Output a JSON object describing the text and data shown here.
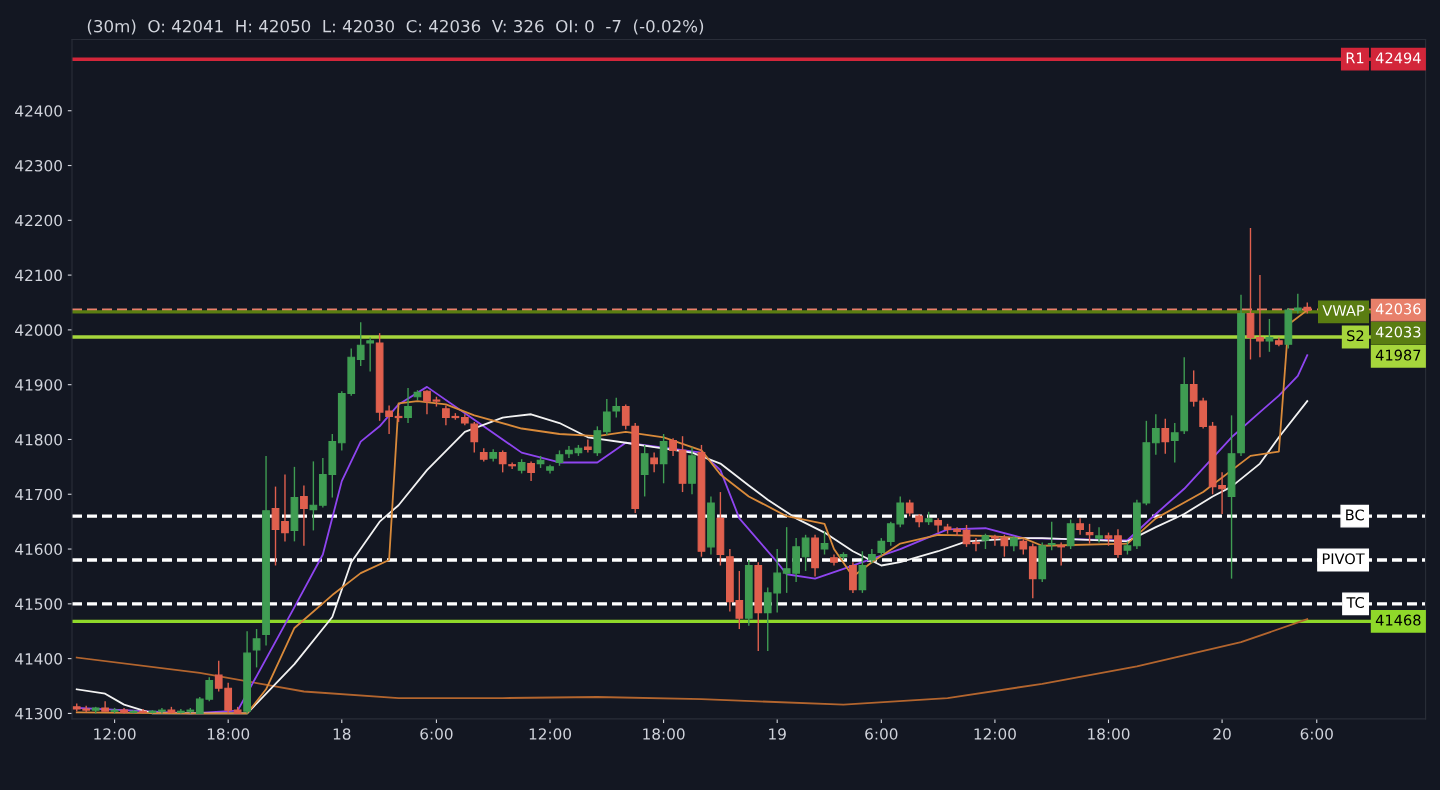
{
  "chart_data": {
    "type": "candlestick",
    "categories": [
      null,
      null,
      null,
      null,
      "12:00",
      null,
      null,
      null,
      null,
      null,
      null,
      null,
      null,
      null,
      null,
      null,
      "18:00",
      null,
      null,
      null,
      null,
      null,
      null,
      null,
      null,
      null,
      null,
      null,
      "18",
      null,
      null,
      null,
      null,
      null,
      null,
      null,
      null,
      null,
      "6:00",
      null,
      null,
      null,
      null,
      null,
      null,
      null,
      null,
      null,
      null,
      null,
      "12:00",
      null,
      null,
      null,
      null,
      null,
      null,
      null,
      null,
      null,
      null,
      null,
      "18:00",
      null,
      null,
      null,
      null,
      null,
      null,
      null,
      null,
      null,
      null,
      null,
      "19",
      null,
      null,
      null,
      null,
      null,
      null,
      null,
      null,
      null,
      null,
      "6:00",
      null,
      null,
      null,
      null,
      null,
      null,
      null,
      null,
      null,
      null,
      null,
      "12:00",
      null,
      null,
      null,
      null,
      null,
      null,
      null,
      null,
      null,
      null,
      null,
      "18:00",
      null,
      null,
      null,
      null,
      null,
      null,
      null,
      null,
      null,
      null,
      null,
      "20",
      null,
      null,
      null,
      null,
      null,
      null,
      null,
      null,
      null,
      "6:00"
    ],
    "ohlc": [
      [
        41312,
        41318,
        41304,
        41308
      ],
      [
        41308,
        41314,
        41302,
        41306
      ],
      [
        41306,
        41312,
        41300,
        41310
      ],
      [
        41310,
        41322,
        41304,
        41304
      ],
      [
        41304,
        41310,
        41300,
        41306
      ],
      [
        41306,
        41310,
        41300,
        41302
      ],
      [
        41302,
        41306,
        41300,
        41304
      ],
      [
        41304,
        41308,
        41300,
        41302
      ],
      [
        41302,
        41306,
        41300,
        41304
      ],
      [
        41304,
        41310,
        41300,
        41306
      ],
      [
        41306,
        41312,
        41300,
        41302
      ],
      [
        41302,
        41308,
        41300,
        41304
      ],
      [
        41304,
        41310,
        41300,
        41306
      ],
      [
        41300,
        41330,
        41300,
        41326
      ],
      [
        41326,
        41366,
        41322,
        41360
      ],
      [
        41370,
        41396,
        41340,
        41346
      ],
      [
        41346,
        41356,
        41300,
        41306
      ],
      [
        41306,
        41312,
        41300,
        41300
      ],
      [
        41304,
        41450,
        41300,
        41410
      ],
      [
        41416,
        41454,
        41384,
        41436
      ],
      [
        41444,
        41770,
        41424,
        41670
      ],
      [
        41674,
        41714,
        41570,
        41636
      ],
      [
        41650,
        41736,
        41614,
        41630
      ],
      [
        41634,
        41750,
        41614,
        41694
      ],
      [
        41696,
        41716,
        41606,
        41674
      ],
      [
        41672,
        41760,
        41634,
        41680
      ],
      [
        41680,
        41766,
        41676,
        41736
      ],
      [
        41736,
        41810,
        41694,
        41796
      ],
      [
        41794,
        41888,
        41780,
        41884
      ],
      [
        41884,
        41966,
        41880,
        41950
      ],
      [
        41946,
        42014,
        41934,
        41972
      ],
      [
        41976,
        41986,
        41924,
        41980
      ],
      [
        41976,
        41994,
        41834,
        41850
      ],
      [
        41852,
        41862,
        41810,
        41842
      ],
      [
        41842,
        41848,
        41832,
        41840
      ],
      [
        41840,
        41894,
        41830,
        41860
      ],
      [
        41878,
        41890,
        41872,
        41886
      ],
      [
        41888,
        41890,
        41846,
        41870
      ],
      [
        41872,
        41878,
        41860,
        41870
      ],
      [
        41856,
        41862,
        41826,
        41840
      ],
      [
        41842,
        41848,
        41836,
        41840
      ],
      [
        41840,
        41846,
        41826,
        41830
      ],
      [
        41828,
        41832,
        41776,
        41796
      ],
      [
        41776,
        41784,
        41760,
        41764
      ],
      [
        41766,
        41782,
        41760,
        41776
      ],
      [
        41776,
        41780,
        41740,
        41756
      ],
      [
        41754,
        41758,
        41746,
        41752
      ],
      [
        41744,
        41764,
        41738,
        41758
      ],
      [
        41756,
        41760,
        41724,
        41740
      ],
      [
        41756,
        41770,
        41748,
        41762
      ],
      [
        41744,
        41754,
        41738,
        41750
      ],
      [
        41758,
        41780,
        41752,
        41772
      ],
      [
        41774,
        41788,
        41766,
        41780
      ],
      [
        41776,
        41790,
        41770,
        41784
      ],
      [
        41786,
        41800,
        41776,
        41782
      ],
      [
        41776,
        41824,
        41770,
        41816
      ],
      [
        41814,
        41874,
        41808,
        41850
      ],
      [
        41852,
        41876,
        41840,
        41860
      ],
      [
        41860,
        41864,
        41818,
        41826
      ],
      [
        41824,
        41830,
        41666,
        41674
      ],
      [
        41736,
        41790,
        41696,
        41774
      ],
      [
        41766,
        41776,
        41740,
        41756
      ],
      [
        41756,
        41810,
        41720,
        41796
      ],
      [
        41798,
        41802,
        41770,
        41780
      ],
      [
        41780,
        41806,
        41704,
        41720
      ],
      [
        41720,
        41786,
        41700,
        41770
      ],
      [
        41776,
        41790,
        41586,
        41596
      ],
      [
        41604,
        41696,
        41590,
        41684
      ],
      [
        41656,
        41704,
        41570,
        41590
      ],
      [
        41586,
        41600,
        41486,
        41504
      ],
      [
        41506,
        41560,
        41454,
        41474
      ],
      [
        41474,
        41580,
        41460,
        41570
      ],
      [
        41570,
        41576,
        41414,
        41484
      ],
      [
        41484,
        41530,
        41414,
        41520
      ],
      [
        41520,
        41600,
        41484,
        41556
      ],
      [
        41556,
        41640,
        41520,
        41564
      ],
      [
        41556,
        41620,
        41540,
        41604
      ],
      [
        41586,
        41626,
        41560,
        41620
      ],
      [
        41620,
        41626,
        41550,
        41566
      ],
      [
        41600,
        41632,
        41590,
        41610
      ],
      [
        41584,
        41590,
        41570,
        41576
      ],
      [
        41586,
        41594,
        41580,
        41590
      ],
      [
        41570,
        41576,
        41520,
        41526
      ],
      [
        41526,
        41596,
        41520,
        41570
      ],
      [
        41580,
        41600,
        41574,
        41590
      ],
      [
        41594,
        41620,
        41588,
        41614
      ],
      [
        41614,
        41650,
        41606,
        41646
      ],
      [
        41646,
        41696,
        41640,
        41684
      ],
      [
        41684,
        41690,
        41660,
        41666
      ],
      [
        41660,
        41664,
        41640,
        41650
      ],
      [
        41650,
        41668,
        41644,
        41655
      ],
      [
        41652,
        41656,
        41630,
        41644
      ],
      [
        41640,
        41646,
        41628,
        41636
      ],
      [
        41636,
        41640,
        41624,
        41632
      ],
      [
        41634,
        41644,
        41604,
        41610
      ],
      [
        41612,
        41620,
        41596,
        41610
      ],
      [
        41616,
        41628,
        41600,
        41624
      ],
      [
        41622,
        41626,
        41606,
        41620
      ],
      [
        41620,
        41626,
        41586,
        41606
      ],
      [
        41606,
        41624,
        41596,
        41620
      ],
      [
        41614,
        41618,
        41590,
        41600
      ],
      [
        41604,
        41610,
        41510,
        41546
      ],
      [
        41546,
        41612,
        41540,
        41606
      ],
      [
        41608,
        41650,
        41598,
        41610
      ],
      [
        41606,
        41612,
        41570,
        41604
      ],
      [
        41606,
        41654,
        41600,
        41646
      ],
      [
        41646,
        41656,
        41626,
        41636
      ],
      [
        41630,
        41646,
        41610,
        41626
      ],
      [
        41620,
        41640,
        41612,
        41624
      ],
      [
        41624,
        41630,
        41606,
        41620
      ],
      [
        41624,
        41636,
        41584,
        41590
      ],
      [
        41598,
        41614,
        41590,
        41606
      ],
      [
        41606,
        41690,
        41600,
        41684
      ],
      [
        41684,
        41834,
        41680,
        41794
      ],
      [
        41794,
        41846,
        41772,
        41820
      ],
      [
        41820,
        41838,
        41774,
        41796
      ],
      [
        41798,
        41830,
        41758,
        41812
      ],
      [
        41816,
        41950,
        41810,
        41900
      ],
      [
        41900,
        41926,
        41860,
        41870
      ],
      [
        41870,
        41876,
        41820,
        41824
      ],
      [
        41824,
        41832,
        41700,
        41714
      ],
      [
        41716,
        41740,
        41664,
        41710
      ],
      [
        41696,
        41844,
        41546,
        41774
      ],
      [
        41776,
        42064,
        41770,
        42030
      ],
      [
        42030,
        42186,
        41946,
        41986
      ],
      [
        41986,
        42100,
        41950,
        41980
      ],
      [
        41980,
        42020,
        41960,
        41986
      ],
      [
        41980,
        41986,
        41970,
        41974
      ],
      [
        41974,
        42040,
        41966,
        42036
      ],
      [
        42036,
        42066,
        42030,
        42040
      ],
      [
        42041,
        42050,
        42030,
        42036
      ],
      null
    ],
    "colors": [
      "#e0604e",
      "#e0604e",
      "#3f9c52",
      "#e0604e",
      "#3f9c52",
      "#e0604e",
      "#3f9c52",
      "#e0604e",
      "#3f9c52",
      "#3f9c52",
      "#e0604e",
      "#3f9c52",
      "#3f9c52",
      "#3f9c52",
      "#3f9c52",
      "#e0604e",
      "#e0604e",
      "#e0604e",
      "#3f9c52",
      "#3f9c52",
      "#3f9c52",
      "#e0604e",
      "#e0604e",
      "#3f9c52",
      "#e0604e",
      "#3f9c52",
      "#3f9c52",
      "#3f9c52",
      "#3f9c52",
      "#3f9c52",
      "#3f9c52",
      "#3f9c52",
      "#e0604e",
      "#e0604e",
      "#e0604e",
      "#3f9c52",
      "#3f9c52",
      "#e0604e",
      "#e0604e",
      "#e0604e",
      "#e0604e",
      "#e0604e",
      "#e0604e",
      "#e0604e",
      "#3f9c52",
      "#e0604e",
      "#e0604e",
      "#3f9c52",
      "#e0604e",
      "#3f9c52",
      "#3f9c52",
      "#3f9c52",
      "#3f9c52",
      "#3f9c52",
      "#e0604e",
      "#3f9c52",
      "#3f9c52",
      "#3f9c52",
      "#e0604e",
      "#e0604e",
      "#3f9c52",
      "#e0604e",
      "#3f9c52",
      "#e0604e",
      "#e0604e",
      "#3f9c52",
      "#e0604e",
      "#3f9c52",
      "#e0604e",
      "#e0604e",
      "#e0604e",
      "#3f9c52",
      "#e0604e",
      "#3f9c52",
      "#3f9c52",
      "#3f9c52",
      "#3f9c52",
      "#3f9c52",
      "#e0604e",
      "#3f9c52",
      "#e0604e",
      "#3f9c52",
      "#e0604e",
      "#3f9c52",
      "#3f9c52",
      "#3f9c52",
      "#3f9c52",
      "#3f9c52",
      "#e0604e",
      "#e0604e",
      "#3f9c52",
      "#e0604e",
      "#e0604e",
      "#e0604e",
      "#e0604e",
      "#e0604e",
      "#3f9c52",
      "#e0604e",
      "#e0604e",
      "#3f9c52",
      "#e0604e",
      "#e0604e",
      "#3f9c52",
      "#3f9c52",
      "#e0604e",
      "#3f9c52",
      "#e0604e",
      "#e0604e",
      "#3f9c52",
      "#e0604e",
      "#e0604e",
      "#3f9c52",
      "#3f9c52",
      "#3f9c52",
      "#3f9c52",
      "#e0604e",
      "#3f9c52",
      "#3f9c52",
      "#e0604e",
      "#e0604e",
      "#e0604e",
      "#e0604e",
      "#3f9c52",
      "#3f9c52",
      "#e0604e",
      "#e0604e",
      "#3f9c52",
      "#e0604e",
      "#3f9c52",
      "#3f9c52",
      "#e0604e",
      null
    ],
    "ylim": [
      41290,
      42530
    ],
    "yticks": [
      41300,
      41400,
      41500,
      41600,
      41700,
      41800,
      41900,
      42000,
      42100,
      42200,
      42300,
      42400
    ],
    "series": [
      {
        "type": "line",
        "color": "#b3652e",
        "values": [
          41402,
          null,
          null,
          null,
          null,
          null,
          null,
          null,
          null,
          null,
          null,
          null,
          null,
          41374,
          null,
          null,
          null,
          null,
          null,
          null,
          null,
          null,
          null,
          null,
          41340,
          null,
          null,
          null,
          null,
          null,
          null,
          null,
          null,
          null,
          41328,
          null,
          null,
          null,
          null,
          null,
          null,
          null,
          null,
          null,
          null,
          41328,
          null,
          null,
          null,
          null,
          null,
          null,
          null,
          null,
          null,
          41330,
          null,
          null,
          null,
          null,
          null,
          null,
          null,
          null,
          null,
          null,
          41326,
          null,
          null,
          null,
          null,
          null,
          null,
          null,
          null,
          null,
          null,
          null,
          null,
          null,
          null,
          41316,
          null,
          null,
          null,
          null,
          null,
          null,
          null,
          null,
          null,
          null,
          41328,
          null,
          null,
          null,
          null,
          null,
          null,
          null,
          null,
          null,
          41354,
          null,
          null,
          null,
          null,
          null,
          null,
          null,
          null,
          null,
          41386,
          null,
          null,
          null,
          null,
          null,
          null,
          null,
          null,
          null,
          null,
          41430,
          null,
          null,
          null,
          null,
          null,
          null,
          41472,
          null
        ]
      },
      {
        "type": "line",
        "color": "#8f45f0",
        "values": [
          41310,
          null,
          null,
          null,
          null,
          null,
          null,
          null,
          null,
          null,
          null,
          null,
          41300,
          null,
          null,
          null,
          null,
          41305,
          null,
          null,
          null,
          null,
          null,
          41494,
          null,
          null,
          41590,
          null,
          41724,
          null,
          41796,
          null,
          41824,
          null,
          41864,
          null,
          null,
          41896,
          null,
          null,
          null,
          null,
          41836,
          null,
          null,
          null,
          null,
          41776,
          null,
          null,
          null,
          41758,
          null,
          null,
          null,
          41758,
          null,
          null,
          41794,
          null,
          null,
          null,
          null,
          null,
          null,
          null,
          41776,
          null,
          41744,
          null,
          41656,
          null,
          null,
          null,
          41576,
          41554,
          null,
          null,
          41546,
          null,
          null,
          41564,
          null,
          41576,
          null,
          null,
          null,
          41600,
          null,
          null,
          null,
          null,
          41636,
          null,
          null,
          null,
          41638,
          null,
          null,
          null,
          41620,
          null,
          null,
          null,
          null,
          null,
          null,
          null,
          null,
          null,
          null,
          41616,
          null,
          null,
          41664,
          null,
          null,
          41710,
          null,
          null,
          null,
          null,
          41804,
          null,
          null,
          41850,
          null,
          41880,
          null,
          41916,
          41954,
          null
        ]
      },
      {
        "type": "line",
        "color": "#f2f2f2",
        "values": [
          41344,
          null,
          null,
          41336,
          null,
          41316,
          null,
          null,
          41300,
          null,
          null,
          null,
          null,
          null,
          null,
          null,
          null,
          null,
          41300,
          null,
          null,
          null,
          null,
          41390,
          null,
          null,
          null,
          41476,
          null,
          41576,
          null,
          null,
          41650,
          null,
          41680,
          null,
          null,
          41744,
          null,
          null,
          null,
          41814,
          null,
          null,
          null,
          41840,
          null,
          null,
          41846,
          null,
          null,
          41830,
          null,
          null,
          41804,
          null,
          null,
          null,
          41794,
          null,
          null,
          41786,
          null,
          null,
          null,
          41776,
          null,
          null,
          41756,
          null,
          null,
          41716,
          null,
          41690,
          null,
          null,
          41656,
          null,
          null,
          41630,
          null,
          null,
          41596,
          null,
          null,
          41570,
          null,
          41576,
          null,
          null,
          null,
          41596,
          null,
          null,
          41614,
          null,
          null,
          null,
          null,
          null,
          41620,
          null,
          41620,
          null,
          null,
          null,
          null,
          null,
          null,
          null,
          null,
          41614,
          null,
          null,
          41640,
          null,
          null,
          41664,
          null,
          null,
          41696,
          null,
          41714,
          null,
          null,
          41756,
          null,
          41804,
          null,
          null,
          41870,
          null
        ]
      },
      {
        "type": "line",
        "color": "#d98a3a",
        "values": [
          41302,
          null,
          null,
          null,
          null,
          null,
          null,
          null,
          null,
          null,
          null,
          null,
          41300,
          null,
          null,
          null,
          null,
          null,
          41300,
          null,
          41344,
          null,
          null,
          41456,
          null,
          null,
          null,
          41516,
          null,
          null,
          41556,
          null,
          null,
          41580,
          41866,
          null,
          41870,
          null,
          null,
          41864,
          null,
          null,
          41844,
          null,
          null,
          null,
          null,
          41820,
          null,
          null,
          null,
          41810,
          null,
          null,
          null,
          41806,
          null,
          null,
          41814,
          null,
          null,
          null,
          41804,
          null,
          null,
          null,
          41780,
          null,
          41736,
          null,
          null,
          41696,
          null,
          null,
          null,
          41660,
          null,
          null,
          null,
          41646,
          41600,
          null,
          41550,
          null,
          41576,
          null,
          null,
          41610,
          null,
          null,
          null,
          41626,
          null,
          null,
          null,
          null,
          41624,
          null,
          null,
          null,
          41620,
          null,
          41606,
          null,
          null,
          null,
          null,
          null,
          null,
          null,
          null,
          41610,
          null,
          null,
          41656,
          null,
          null,
          null,
          null,
          41704,
          null,
          null,
          null,
          null,
          41770,
          null,
          null,
          41778,
          42010,
          null,
          42036,
          null
        ]
      }
    ],
    "ref_lines": [
      {
        "axis": "y",
        "value": 42494,
        "label": "R1",
        "color": "#d3263a",
        "line_style": "solid"
      },
      {
        "axis": "y",
        "value": 42036,
        "color": "#e8806a",
        "line_style": "dashed"
      },
      {
        "axis": "y",
        "value": 42033,
        "label": "VWAP",
        "color": "#5a7d12",
        "line_style": "solid"
      },
      {
        "axis": "y",
        "value": 41987,
        "label": "S2",
        "color": "#a6d63c",
        "line_style": "solid"
      },
      {
        "axis": "y",
        "value": 41660,
        "label": "BC",
        "color": "#ffffff",
        "line_style": "dashed"
      },
      {
        "axis": "y",
        "value": 41580,
        "label": "PIVOT",
        "color": "#ffffff",
        "line_style": "dashed"
      },
      {
        "axis": "y",
        "value": 41500,
        "label": "TC",
        "color": "#ffffff",
        "line_style": "dashed"
      },
      {
        "axis": "y",
        "value": 41468,
        "color": "#8fd82a",
        "line_style": "solid"
      }
    ],
    "annotations": [
      "(30m)  O: 42041  H: 42050  L: 42030  C: 42036  V: 326  OI: 0  -7  (-0.02%)",
      {
        "text": "42494",
        "y": 42494
      },
      {
        "text": "42036",
        "y": 42036
      },
      {
        "text": "42033",
        "y": 42033
      },
      {
        "text": "41987",
        "y": 41987
      },
      {
        "text": "41468",
        "y": 41468
      }
    ]
  }
}
